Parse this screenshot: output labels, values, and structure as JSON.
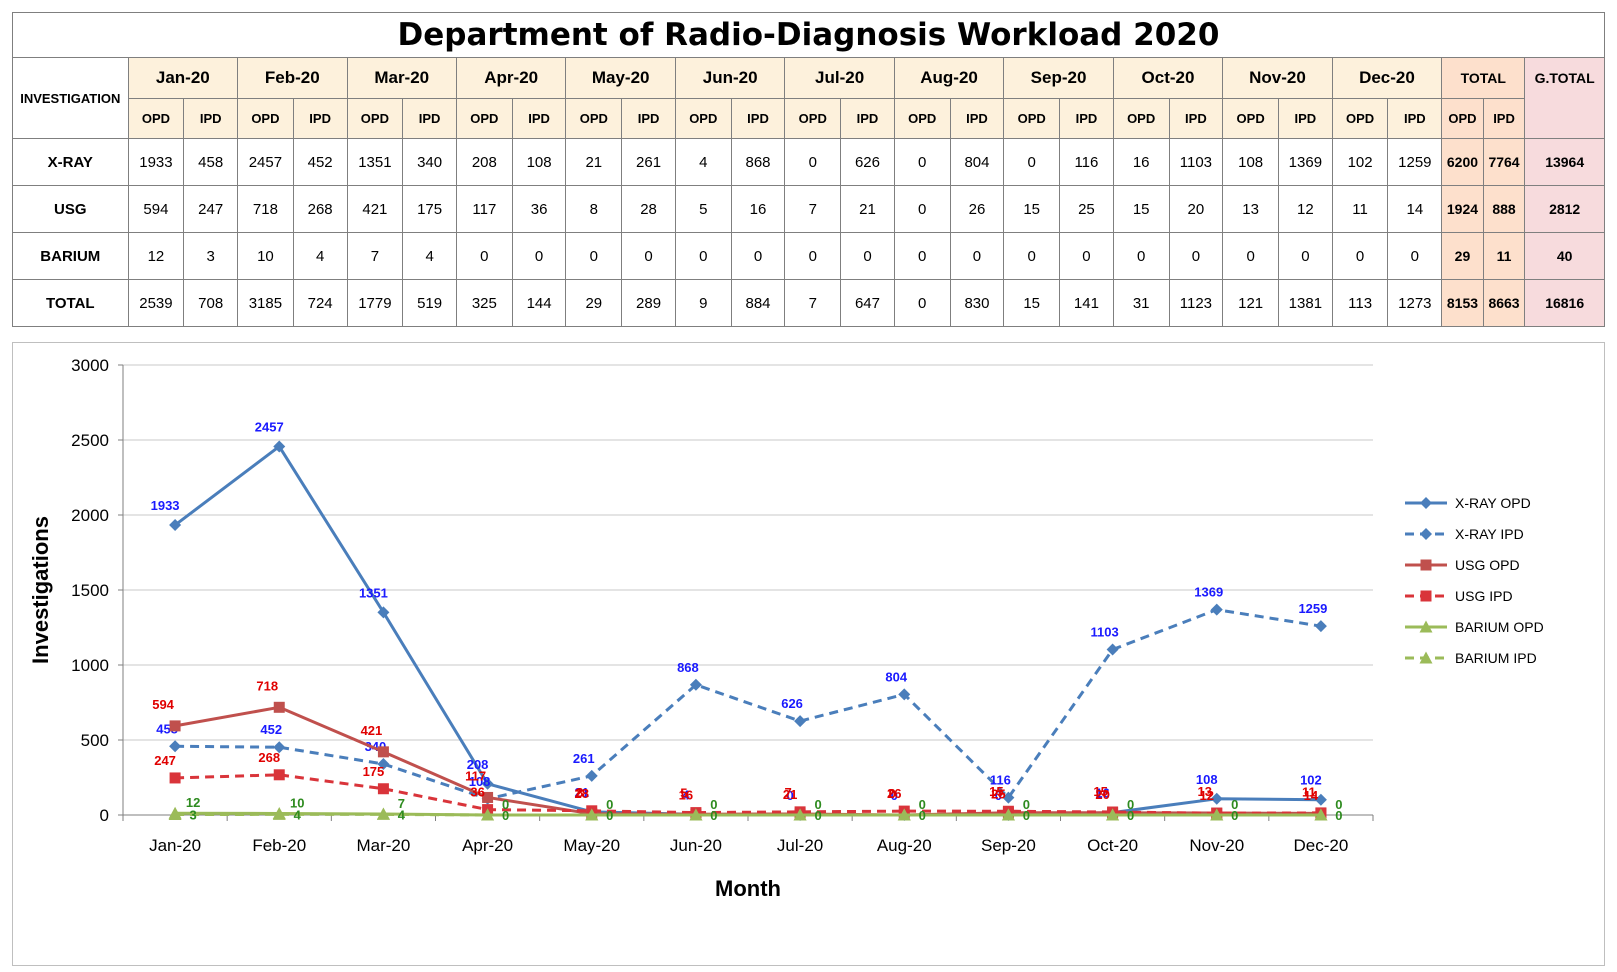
{
  "table": {
    "title": "Department of Radio-Diagnosis Workload 2020",
    "investigation_label": "INVESTIGATION",
    "months": [
      "Jan-20",
      "Feb-20",
      "Mar-20",
      "Apr-20",
      "May-20",
      "Jun-20",
      "Jul-20",
      "Aug-20",
      "Sep-20",
      "Oct-20",
      "Nov-20",
      "Dec-20"
    ],
    "total_label": "TOTAL",
    "gtotal_label": "G.TOTAL",
    "opd_label": "OPD",
    "ipd_label": "IPD",
    "rows": [
      {
        "label": "X-RAY",
        "cells": [
          "1933",
          "458",
          "2457",
          "452",
          "1351",
          "340",
          "208",
          "108",
          "21",
          "261",
          "4",
          "868",
          "0",
          "626",
          "0",
          "804",
          "0",
          "116",
          "16",
          "1103",
          "108",
          "1369",
          "102",
          "1259"
        ],
        "tot_opd": "6200",
        "tot_ipd": "7764",
        "gtotal": "13964"
      },
      {
        "label": "USG",
        "cells": [
          "594",
          "247",
          "718",
          "268",
          "421",
          "175",
          "117",
          "36",
          "8",
          "28",
          "5",
          "16",
          "7",
          "21",
          "0",
          "26",
          "15",
          "25",
          "15",
          "20",
          "13",
          "12",
          "11",
          "14"
        ],
        "tot_opd": "1924",
        "tot_ipd": "888",
        "gtotal": "2812"
      },
      {
        "label": "BARIUM",
        "cells": [
          "12",
          "3",
          "10",
          "4",
          "7",
          "4",
          "0",
          "0",
          "0",
          "0",
          "0",
          "0",
          "0",
          "0",
          "0",
          "0",
          "0",
          "0",
          "0",
          "0",
          "0",
          "0",
          "0",
          "0"
        ],
        "tot_opd": "29",
        "tot_ipd": "11",
        "gtotal": "40"
      },
      {
        "label": "TOTAL",
        "cells": [
          "2539",
          "708",
          "3185",
          "724",
          "1779",
          "519",
          "325",
          "144",
          "29",
          "289",
          "9",
          "884",
          "7",
          "647",
          "0",
          "830",
          "15",
          "141",
          "31",
          "1123",
          "121",
          "1381",
          "113",
          "1273"
        ],
        "tot_opd": "8153",
        "tot_ipd": "8663",
        "gtotal": "16816"
      }
    ]
  },
  "chart_data": {
    "type": "line",
    "categories": [
      "Jan-20",
      "Feb-20",
      "Mar-20",
      "Apr-20",
      "May-20",
      "Jun-20",
      "Jul-20",
      "Aug-20",
      "Sep-20",
      "Oct-20",
      "Nov-20",
      "Dec-20"
    ],
    "xlabel": "Month",
    "ylabel": "Investigations",
    "ylim": [
      0,
      3000
    ],
    "yticks": [
      0,
      500,
      1000,
      1500,
      2000,
      2500,
      3000
    ],
    "grid": true,
    "legend_position": "right",
    "series": [
      {
        "name": "X-RAY OPD",
        "values": [
          1933,
          2457,
          1351,
          208,
          21,
          4,
          0,
          0,
          0,
          16,
          108,
          102
        ],
        "color": "#4a7ebb",
        "dash": false,
        "marker": "diamond",
        "label_color": "#1a1aff"
      },
      {
        "name": "X-RAY IPD",
        "values": [
          458,
          452,
          340,
          108,
          261,
          868,
          626,
          804,
          116,
          1103,
          1369,
          1259
        ],
        "color": "#4a7ebb",
        "dash": true,
        "marker": "diamond",
        "label_color": "#1a1aff"
      },
      {
        "name": "USG OPD",
        "values": [
          594,
          718,
          421,
          117,
          8,
          5,
          7,
          0,
          15,
          15,
          13,
          11
        ],
        "color": "#c0504d",
        "dash": false,
        "marker": "square",
        "label_color": "#e00000"
      },
      {
        "name": "USG IPD",
        "values": [
          247,
          268,
          175,
          36,
          28,
          16,
          21,
          26,
          25,
          20,
          12,
          14
        ],
        "color": "#d9343a",
        "dash": true,
        "marker": "square",
        "label_color": "#e00000"
      },
      {
        "name": "BARIUM OPD",
        "values": [
          12,
          10,
          7,
          0,
          0,
          0,
          0,
          0,
          0,
          0,
          0,
          0
        ],
        "color": "#9bbb59",
        "dash": false,
        "marker": "triangle",
        "label_color": "#2e8b1f"
      },
      {
        "name": "BARIUM IPD",
        "values": [
          3,
          4,
          4,
          0,
          0,
          0,
          0,
          0,
          0,
          0,
          0,
          0
        ],
        "color": "#9bbb59",
        "dash": true,
        "marker": "triangle",
        "label_color": "#2e8b1f"
      }
    ]
  }
}
